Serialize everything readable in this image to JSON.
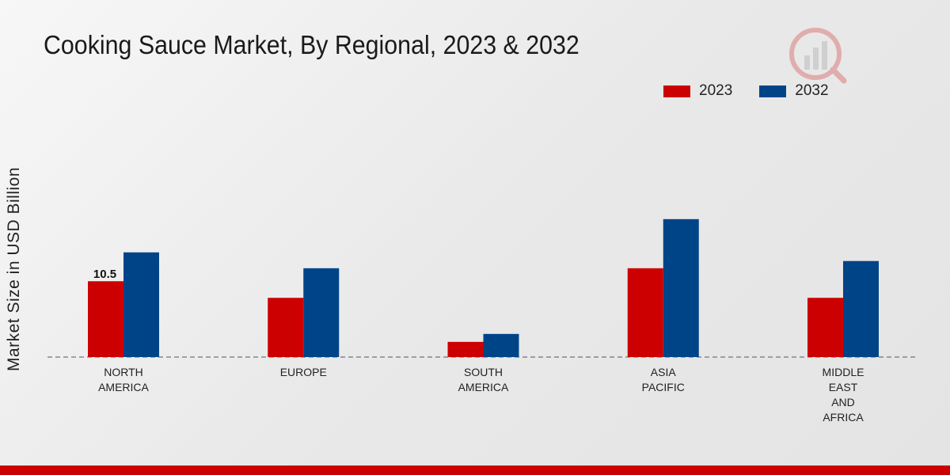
{
  "chart_data": {
    "type": "bar",
    "title": "Cooking Sauce Market, By Regional, 2023 & 2032",
    "xlabel": "",
    "ylabel": "Market Size in USD Billion",
    "categories": [
      [
        "NORTH",
        "AMERICA"
      ],
      [
        "EUROPE"
      ],
      [
        "SOUTH",
        "AMERICA"
      ],
      [
        "ASIA",
        "PACIFIC"
      ],
      [
        "MIDDLE",
        "EAST",
        "AND",
        "AFRICA"
      ]
    ],
    "series": [
      {
        "name": "2023",
        "color": "#cc0000",
        "values": [
          10.5,
          8.2,
          2.1,
          12.3,
          8.2
        ]
      },
      {
        "name": "2032",
        "color": "#004488",
        "values": [
          14.5,
          12.3,
          3.2,
          19.1,
          13.3
        ]
      }
    ],
    "data_labels": [
      {
        "series": 0,
        "index": 0,
        "text": "10.5"
      }
    ],
    "ylim": [
      0,
      30
    ],
    "grid": false,
    "legend_position": "top-right"
  },
  "legend": {
    "items": [
      {
        "label": "2023",
        "color": "#cc0000"
      },
      {
        "label": "2032",
        "color": "#004488"
      }
    ]
  },
  "watermark": {
    "icon": "market-research-logo-icon"
  }
}
